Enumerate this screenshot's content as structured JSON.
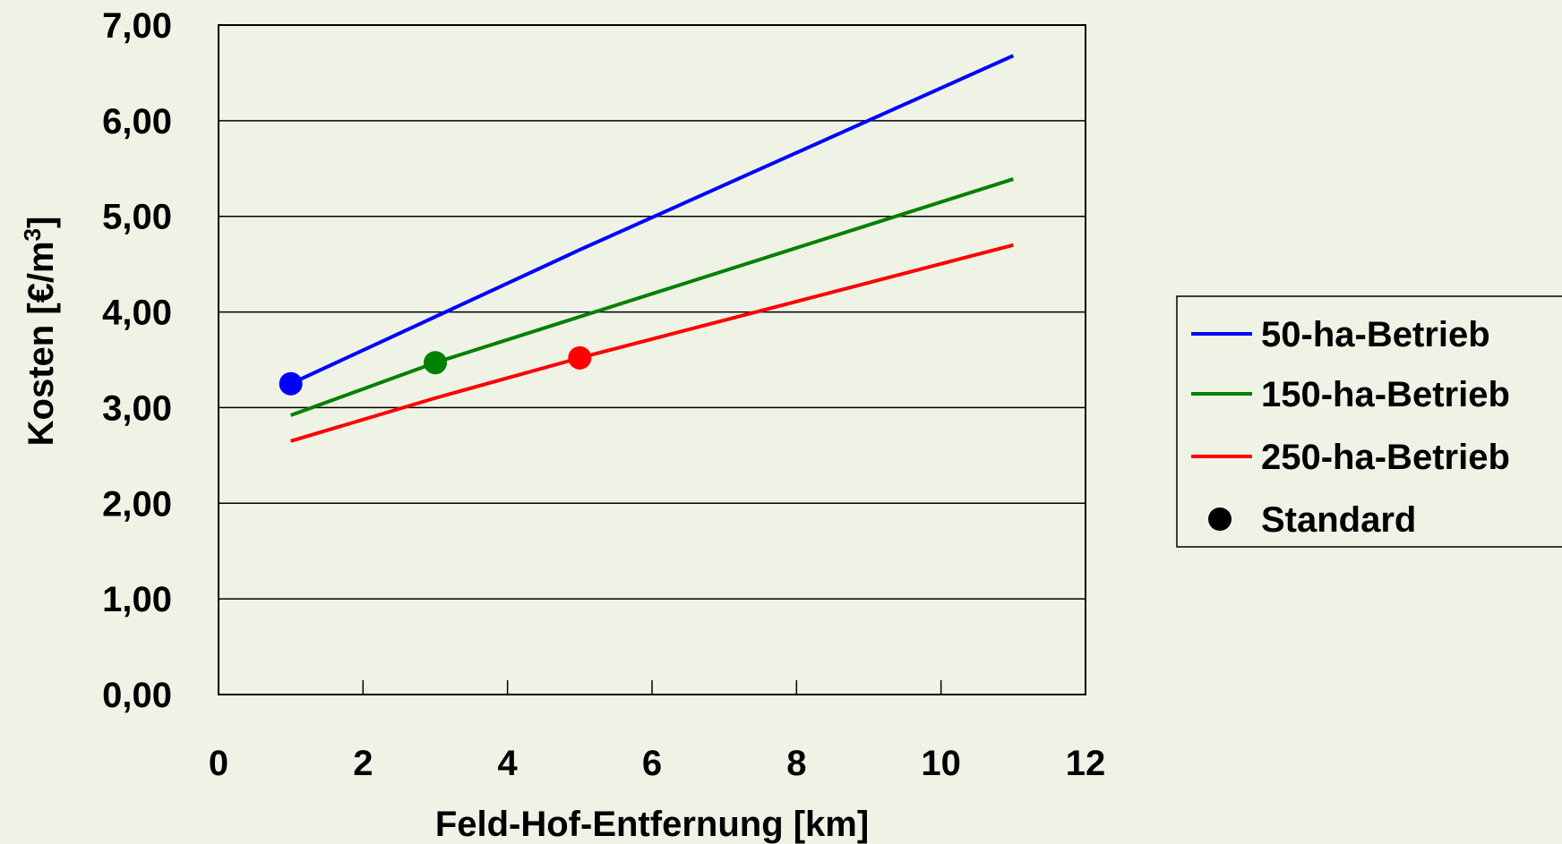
{
  "chart_data": {
    "type": "line",
    "xlabel": "Feld-Hof-Entfernung [km]",
    "ylabel": {
      "main": "Kosten [€/m",
      "sup": "3",
      "end": "]"
    },
    "xlim": [
      0,
      12
    ],
    "ylim": [
      0,
      7
    ],
    "x_ticks": [
      0,
      2,
      4,
      6,
      8,
      10,
      12
    ],
    "x_tick_labels": [
      "0",
      "2",
      "4",
      "6",
      "8",
      "10",
      "12"
    ],
    "y_ticks": [
      0,
      1,
      2,
      3,
      4,
      5,
      6,
      7
    ],
    "y_tick_labels": [
      "0,00",
      "1,00",
      "2,00",
      "3,00",
      "4,00",
      "5,00",
      "6,00",
      "7,00"
    ],
    "grid": "horizontal",
    "legend_position": "right",
    "series": [
      {
        "name": "50-ha-Betrieb",
        "color": "#0000FF",
        "x": [
          1,
          5,
          11
        ],
        "y": [
          3.25,
          4.65,
          6.68
        ]
      },
      {
        "name": "150-ha-Betrieb",
        "color": "#008000",
        "x": [
          1,
          3,
          11
        ],
        "y": [
          2.92,
          3.47,
          5.39
        ]
      },
      {
        "name": "250-ha-Betrieb",
        "color": "#FF0000",
        "x": [
          1,
          3,
          5,
          11
        ],
        "y": [
          2.65,
          3.1,
          3.52,
          4.7
        ]
      }
    ],
    "markers": {
      "name": "Standard",
      "legend_color": "#000000",
      "points": [
        {
          "x": 1,
          "y": 3.25,
          "color": "#0000FF"
        },
        {
          "x": 3,
          "y": 3.47,
          "color": "#008000"
        },
        {
          "x": 5,
          "y": 3.52,
          "color": "#FF0000"
        }
      ]
    }
  }
}
